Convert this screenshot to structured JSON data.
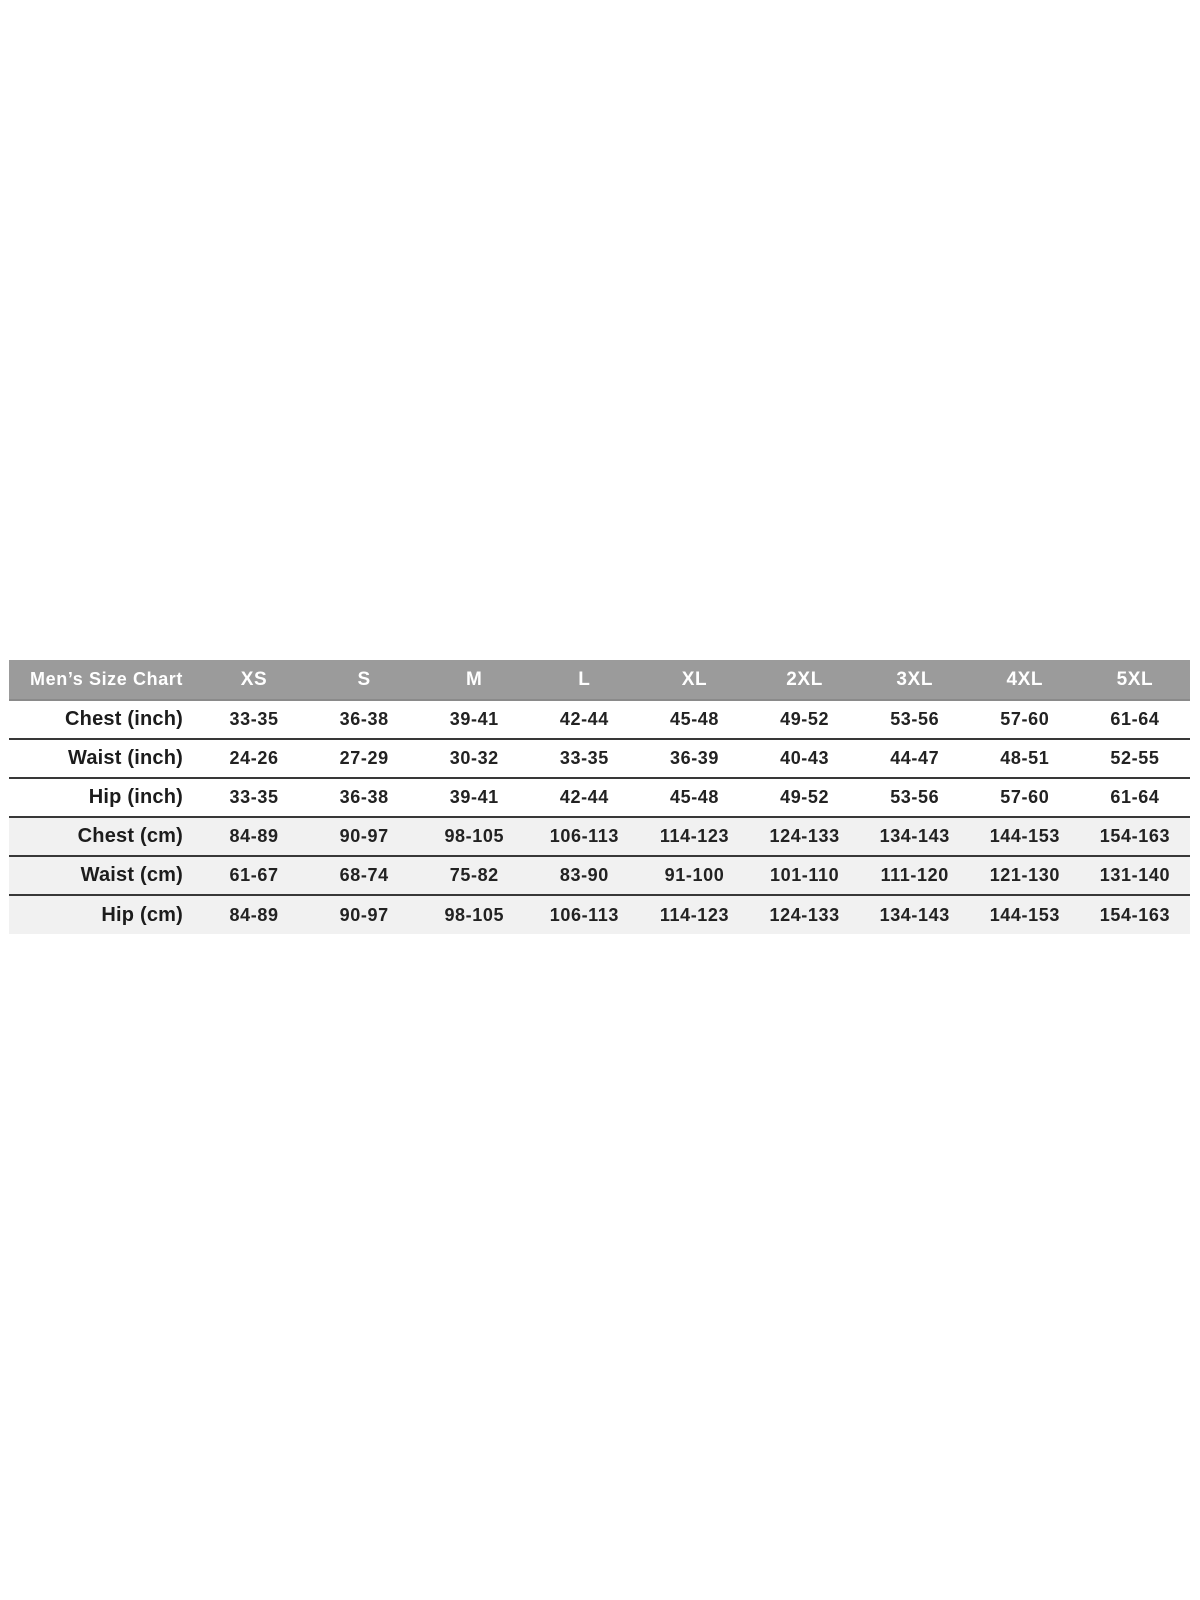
{
  "chart_data": {
    "type": "table",
    "title": "Men’s Size Chart",
    "columns": [
      "Men’s Size Chart",
      "XS",
      "S",
      "M",
      "L",
      "XL",
      "2XL",
      "3XL",
      "4XL",
      "5XL"
    ],
    "rows": [
      {
        "label": "Chest (inch)",
        "shaded": false,
        "values": [
          "33-35",
          "36-38",
          "39-41",
          "42-44",
          "45-48",
          "49-52",
          "53-56",
          "57-60",
          "61-64"
        ]
      },
      {
        "label": "Waist (inch)",
        "shaded": false,
        "values": [
          "24-26",
          "27-29",
          "30-32",
          "33-35",
          "36-39",
          "40-43",
          "44-47",
          "48-51",
          "52-55"
        ]
      },
      {
        "label": "Hip (inch)",
        "shaded": false,
        "values": [
          "33-35",
          "36-38",
          "39-41",
          "42-44",
          "45-48",
          "49-52",
          "53-56",
          "57-60",
          "61-64"
        ]
      },
      {
        "label": "Chest (cm)",
        "shaded": true,
        "values": [
          "84-89",
          "90-97",
          "98-105",
          "106-113",
          "114-123",
          "124-133",
          "134-143",
          "144-153",
          "154-163"
        ]
      },
      {
        "label": "Waist (cm)",
        "shaded": true,
        "values": [
          "61-67",
          "68-74",
          "75-82",
          "83-90",
          "91-100",
          "101-110",
          "111-120",
          "121-130",
          "131-140"
        ]
      },
      {
        "label": "Hip (cm)",
        "shaded": true,
        "values": [
          "84-89",
          "90-97",
          "98-105",
          "106-113",
          "114-123",
          "124-133",
          "134-143",
          "144-153",
          "154-163"
        ]
      }
    ],
    "layout": {
      "label_column_align": "right",
      "value_align": "center",
      "shading": "cm rows light gray"
    }
  },
  "colors": {
    "page_background": "#ffffff",
    "header_background": "#9b9b9b",
    "header_text": "#ffffff",
    "body_text": "#1c1c1c",
    "shaded_row_background": "#f1f1f1",
    "row_divider": "#383838"
  }
}
